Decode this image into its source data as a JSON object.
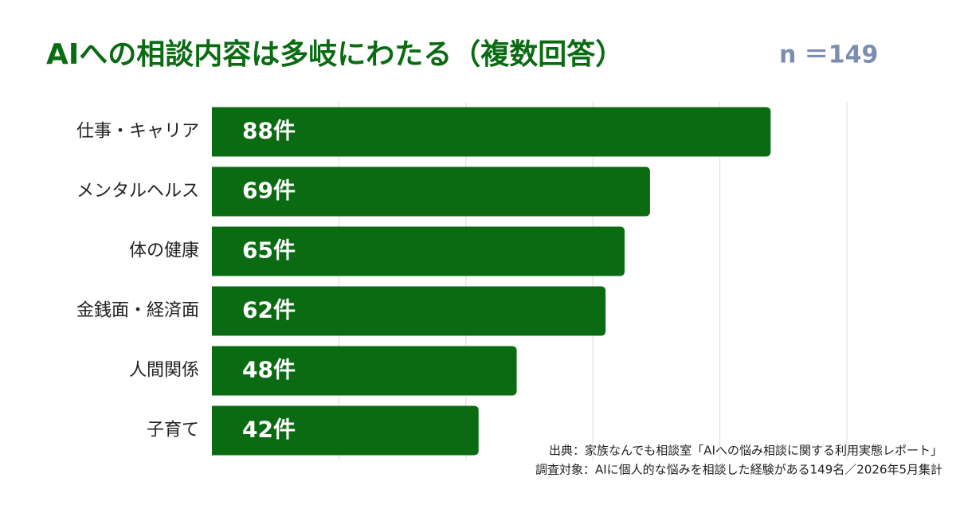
{
  "chart_data": {
    "type": "bar",
    "orientation": "horizontal",
    "title": "AIへの相談内容は多岐にわたる（複数回答）",
    "subtitle": "n ＝149",
    "categories": [
      "仕事・キャリア",
      "メンタルヘルス",
      "体の健康",
      "金銭面・経済面",
      "人間関係",
      "子育て"
    ],
    "values": [
      88,
      69,
      65,
      62,
      48,
      42
    ],
    "value_labels": [
      "88件",
      "69件",
      "65件",
      "62件",
      "48件",
      "42件"
    ],
    "color": "#0a6b12",
    "xlim": [
      0,
      100
    ],
    "xticks": [
      20,
      40,
      60,
      80,
      100
    ],
    "grid": true,
    "notes": [
      "出典：家族なんでも相談室「AIへの悩み相談に関する利用実態レポート」",
      "調査対象：AIに個人的な悩みを相談した経験がある149名／2026年5月集計"
    ]
  }
}
